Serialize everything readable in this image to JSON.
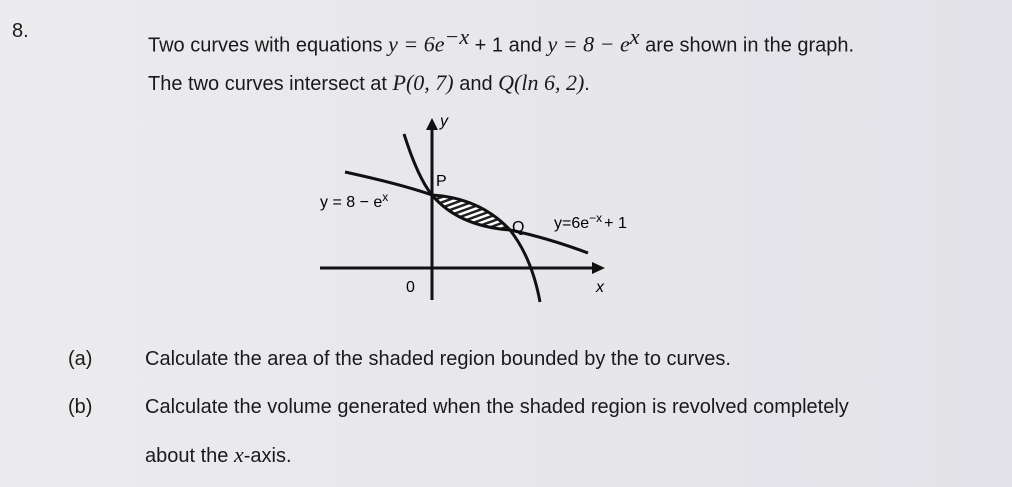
{
  "question": {
    "number": "8.",
    "line1": [
      "Two curves with equations ",
      "y = 6e",
      "−x",
      " + 1 and ",
      "y = 8 − e",
      "x",
      " are shown in the graph."
    ],
    "line2": [
      "The two curves intersect at ",
      "P(0, 7)",
      " and ",
      "Q(ln 6, 2)",
      "."
    ],
    "diagram": {
      "y_axis": "y",
      "x_axis": "x",
      "origin": "0",
      "point_p": "P",
      "point_q": "Q",
      "curve1": [
        "y = 8 − e",
        "x"
      ],
      "curve2": [
        "y=6e",
        "−x",
        "+ 1"
      ]
    },
    "parts": [
      {
        "label": "(a)",
        "text": [
          "Calculate the area of the shaded region bounded by the to curves."
        ]
      },
      {
        "label": "(b)",
        "text": [
          "Calculate the volume generated when the shaded region is revolved completely"
        ],
        "continuation": [
          "about the ",
          "x",
          "-axis."
        ]
      }
    ]
  }
}
